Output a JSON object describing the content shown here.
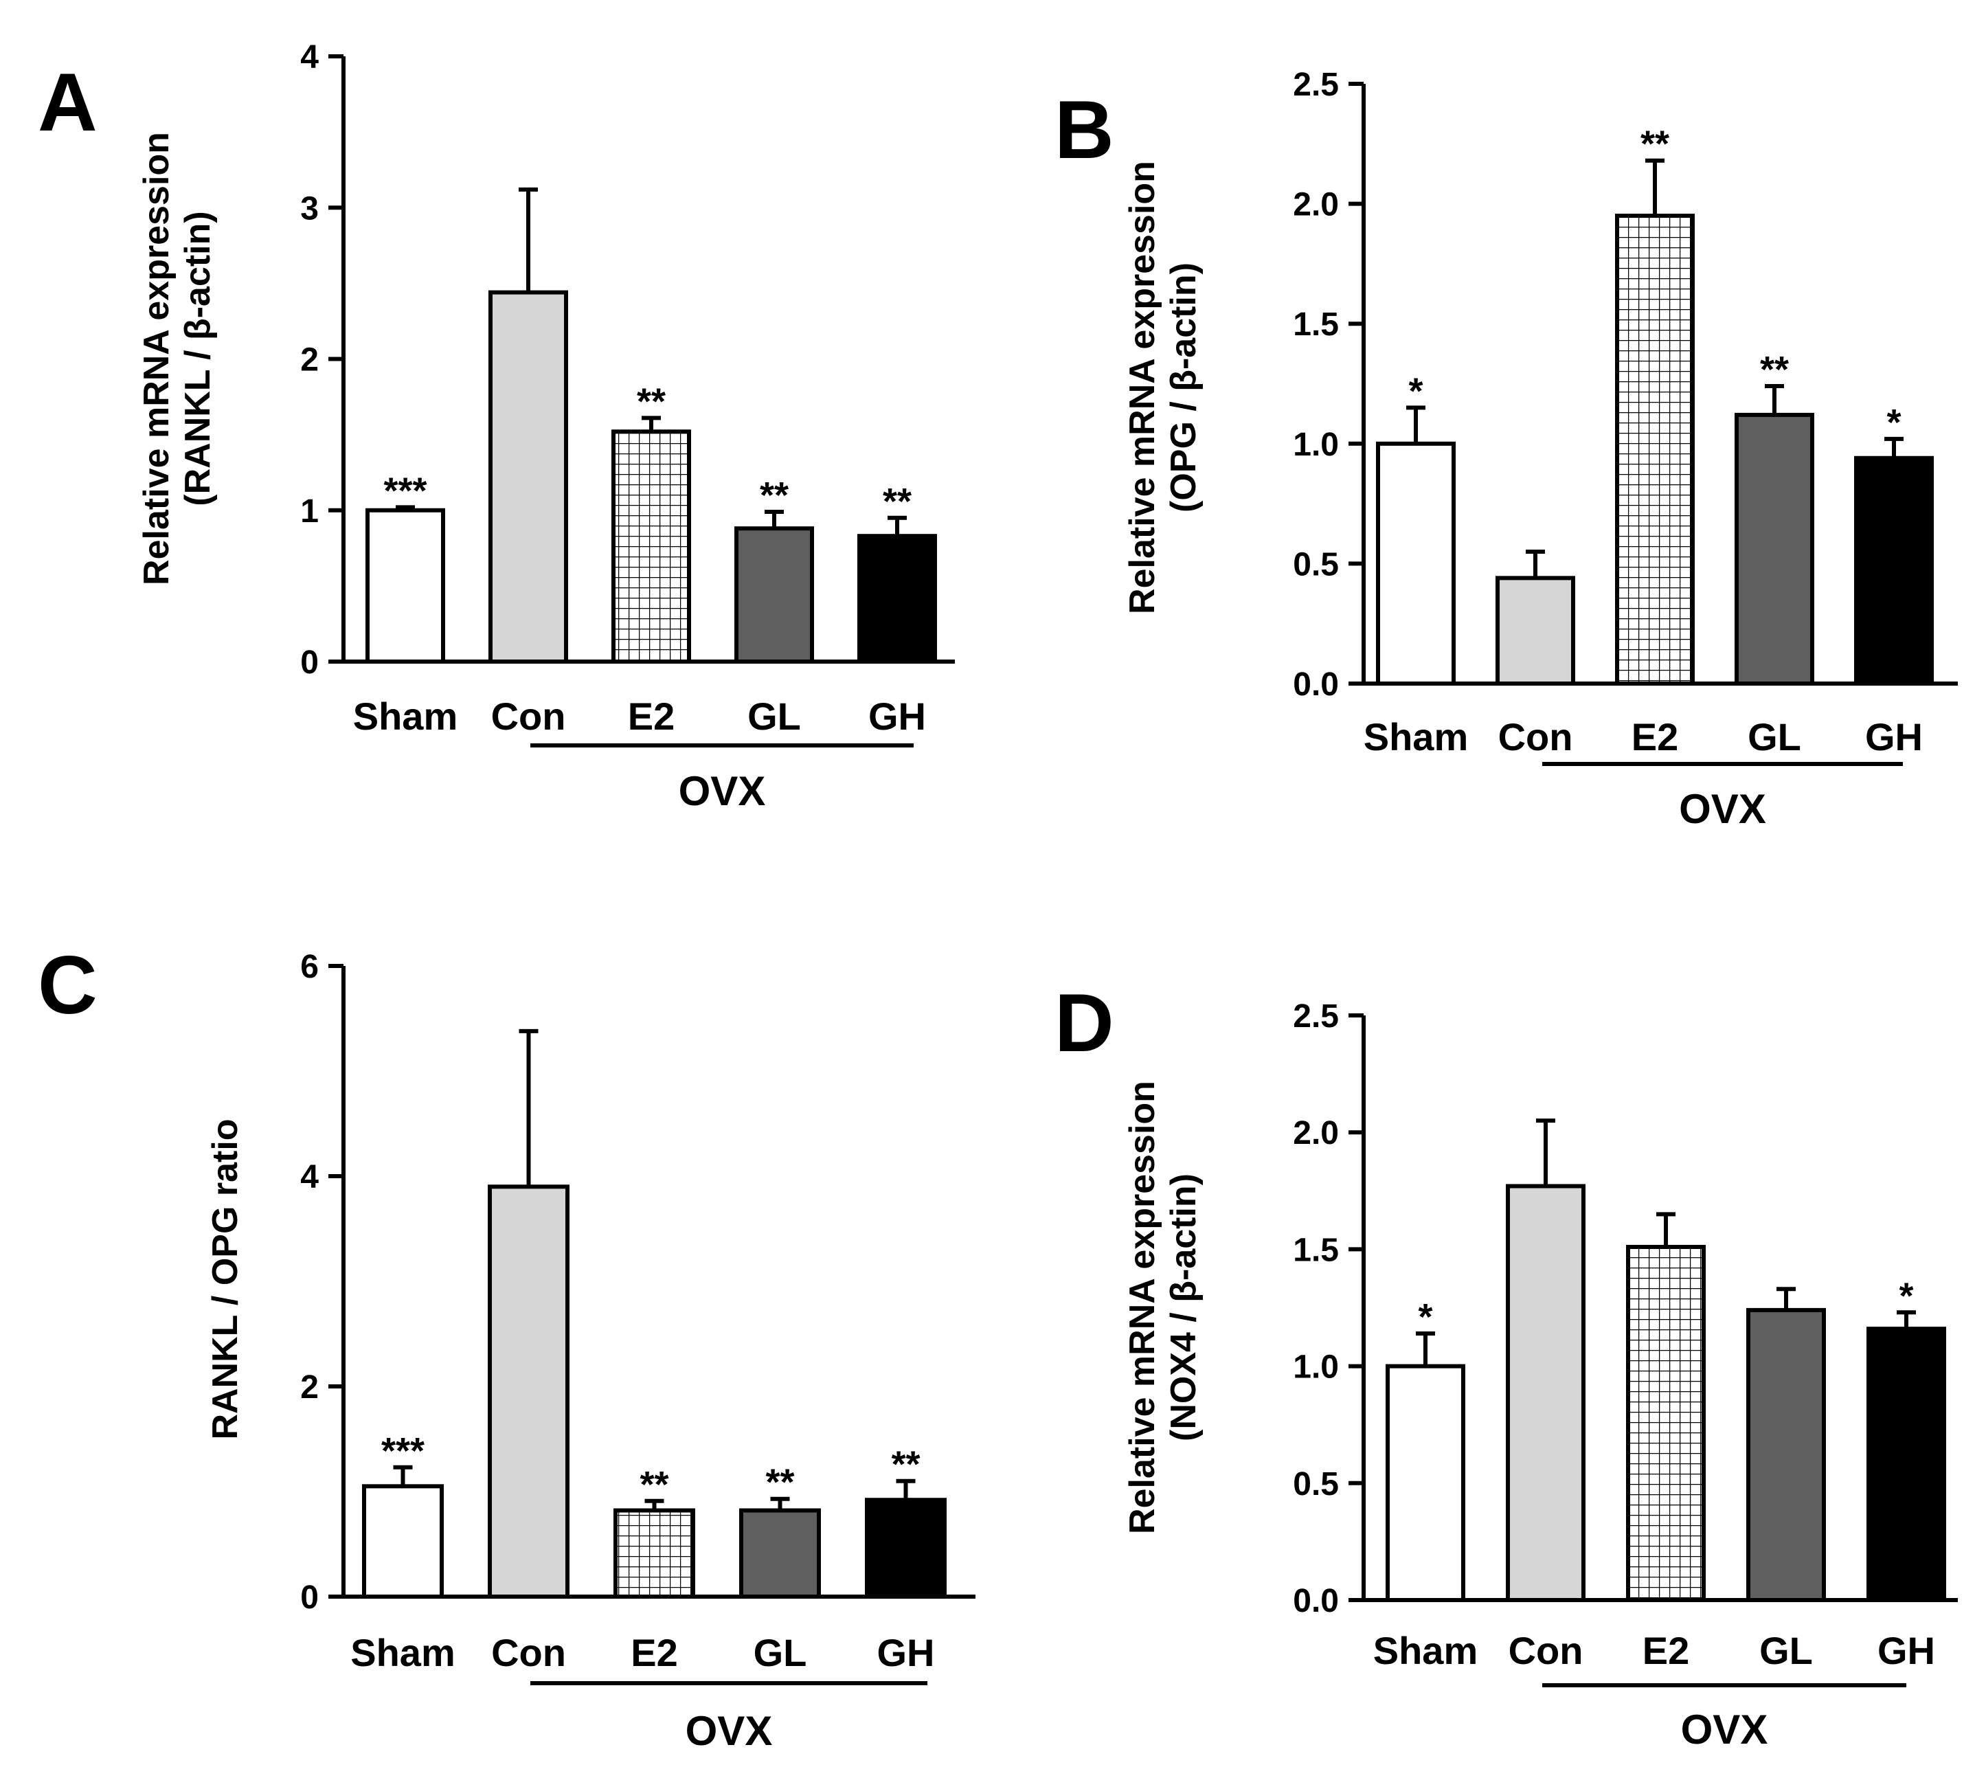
{
  "figure": {
    "panel_letters": [
      "A",
      "B",
      "C",
      "D"
    ],
    "colors": {
      "Sham": "#ffffff",
      "Con": "#d6d6d6",
      "E2": "pattern:grid",
      "GL": "#5f5f5f",
      "GH": "#000000",
      "axis": "#000000"
    }
  },
  "chart_data": [
    {
      "panel": "A",
      "type": "bar",
      "ylabel_lines": [
        "Relative mRNA expression",
        "(RANKL / β-actin)"
      ],
      "categories": [
        "Sham",
        "Con",
        "E2",
        "GL",
        "GH"
      ],
      "values": [
        1.0,
        2.44,
        1.52,
        0.88,
        0.83
      ],
      "errors": [
        0.02,
        0.68,
        0.09,
        0.11,
        0.12
      ],
      "significance": [
        "***",
        "",
        "**",
        "**",
        "**"
      ],
      "yticks": [
        "0",
        "1",
        "2",
        "3",
        "4"
      ],
      "ylim": [
        0,
        4
      ],
      "group_label": "OVX"
    },
    {
      "panel": "B",
      "type": "bar",
      "ylabel_lines": [
        "Relative mRNA expression",
        "(OPG / β-actin)"
      ],
      "categories": [
        "Sham",
        "Con",
        "E2",
        "GL",
        "GH"
      ],
      "values": [
        1.0,
        0.44,
        1.95,
        1.12,
        0.94
      ],
      "errors": [
        0.15,
        0.11,
        0.23,
        0.12,
        0.08
      ],
      "significance": [
        "*",
        "",
        "**",
        "**",
        "*"
      ],
      "yticks": [
        "0.0",
        "0.5",
        "1.0",
        "1.5",
        "2.0",
        "2.5"
      ],
      "ylim": [
        0,
        2.5
      ],
      "group_label": "OVX"
    },
    {
      "panel": "C",
      "type": "bar",
      "ylabel_lines": [
        "RANKL / OPG ratio"
      ],
      "categories": [
        "Sham",
        "Con",
        "E2",
        "GL",
        "GH"
      ],
      "values": [
        1.05,
        3.9,
        0.82,
        0.82,
        0.92
      ],
      "errors": [
        0.18,
        1.48,
        0.09,
        0.11,
        0.18
      ],
      "significance": [
        "***",
        "",
        "**",
        "**",
        "**"
      ],
      "yticks": [
        "0",
        "2",
        "4",
        "6"
      ],
      "ylim": [
        0,
        6
      ],
      "group_label": "OVX"
    },
    {
      "panel": "D",
      "type": "bar",
      "ylabel_lines": [
        "Relative mRNA expression",
        "(NOX4 / β-actin)"
      ],
      "categories": [
        "Sham",
        "Con",
        "E2",
        "GL",
        "GH"
      ],
      "values": [
        1.0,
        1.77,
        1.51,
        1.24,
        1.16
      ],
      "errors": [
        0.14,
        0.28,
        0.14,
        0.09,
        0.07
      ],
      "significance": [
        "*",
        "",
        "",
        "",
        "*"
      ],
      "yticks": [
        "0.0",
        "0.5",
        "1.0",
        "1.5",
        "2.0",
        "2.5"
      ],
      "ylim": [
        0,
        2.5
      ],
      "group_label": "OVX"
    }
  ]
}
